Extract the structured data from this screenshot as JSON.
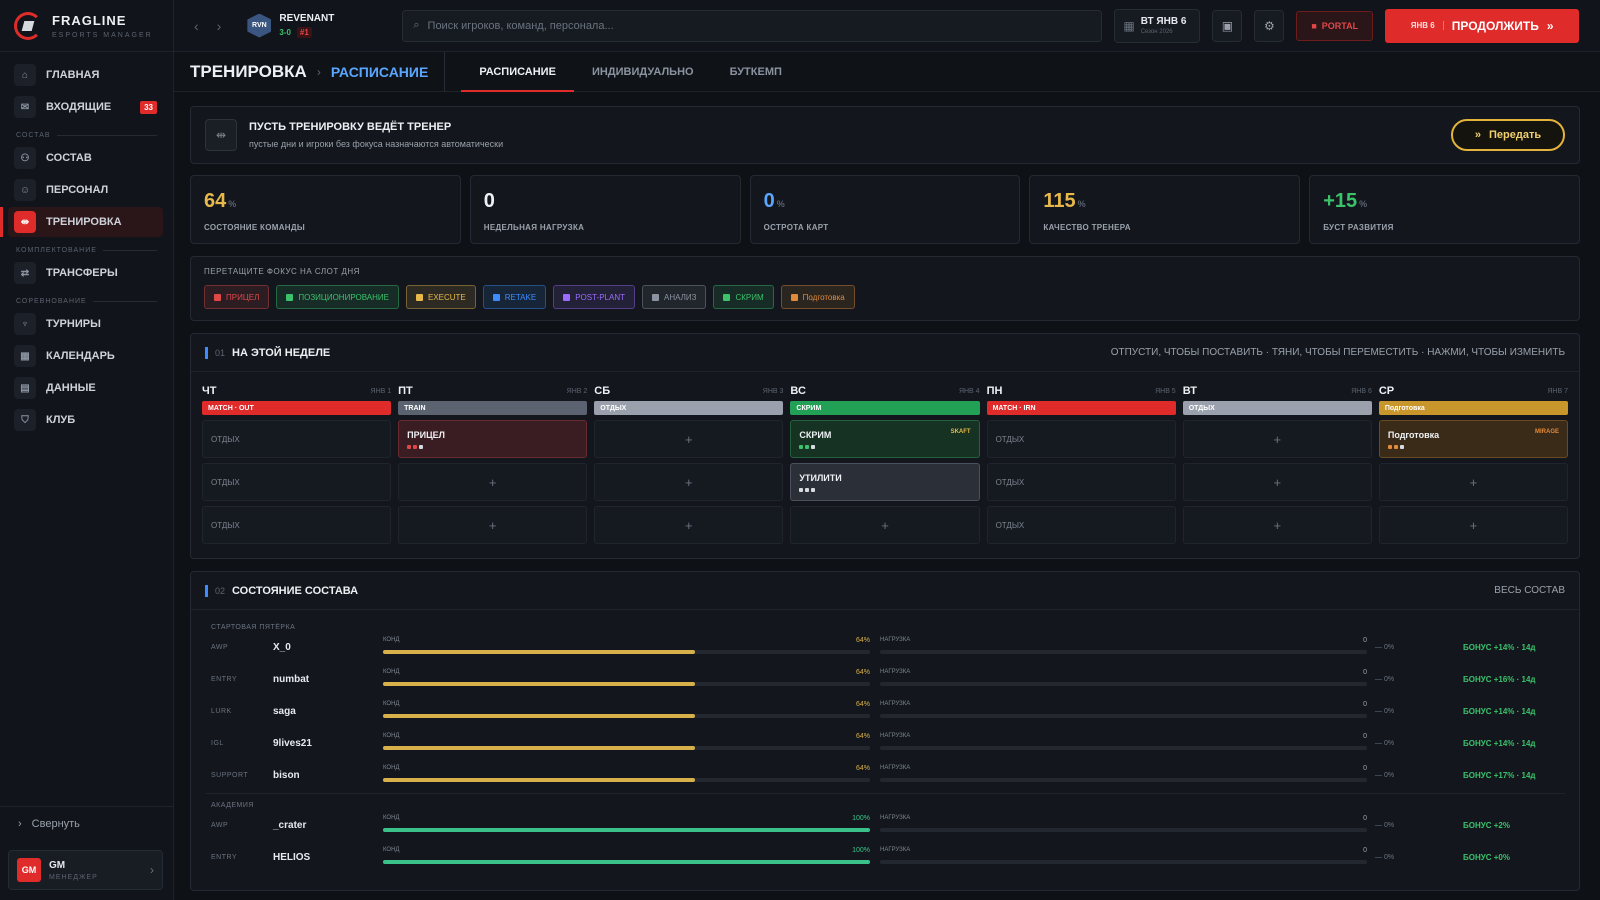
{
  "brand": {
    "name": "FRAGLINE",
    "subtitle": "ESPORTS MANAGER"
  },
  "sidebar": {
    "items": [
      {
        "label": "ГЛАВНАЯ",
        "icon": "home-icon"
      },
      {
        "label": "ВХОДЯЩИЕ",
        "icon": "mail-icon",
        "badge": "33"
      },
      {
        "label": "СОСТАВ",
        "icon": "users-icon"
      },
      {
        "label": "ПЕРСОНАЛ",
        "icon": "person-icon"
      },
      {
        "label": "ТРЕНИРОВКА",
        "icon": "dumbbell-icon"
      },
      {
        "label": "ТРАНСФЕРЫ",
        "icon": "transfer-icon"
      },
      {
        "label": "ТУРНИРЫ",
        "icon": "trophy-icon"
      },
      {
        "label": "КАЛЕНДАРЬ",
        "icon": "calendar-icon"
      },
      {
        "label": "ДАННЫЕ",
        "icon": "data-icon"
      },
      {
        "label": "КЛУБ",
        "icon": "shield-icon"
      }
    ],
    "sections": [
      "СОСТАВ",
      "КОМПЛЕКТОВАНИЕ",
      "СОРЕВНОВАНИЕ"
    ],
    "collapse_label": "Свернуть",
    "user": {
      "initials": "GM",
      "name": "GM",
      "role": "МЕНЕДЖЕР"
    }
  },
  "topbar": {
    "team": {
      "abbr": "RVN",
      "name": "REVENANT",
      "record": "3-0",
      "rank": "#1"
    },
    "search_placeholder": "Поиск игроков, команд, персонала...",
    "date": {
      "main": "ВТ ЯНВ 6",
      "sub": "Сезон 2026"
    },
    "portal_label": "PORTAL",
    "continue": {
      "date": "ЯНВ 6",
      "label": "ПРОДОЛЖИТЬ"
    }
  },
  "page": {
    "title": "ТРЕНИРОВКА",
    "current": "РАСПИСАНИЕ",
    "tabs": [
      "РАСПИСАНИЕ",
      "ИНДИВИДУАЛЬНО",
      "БУТКЕМП"
    ]
  },
  "coach": {
    "title": "ПУСТЬ ТРЕНИРОВКУ ВЕДЁТ ТРЕНЕР",
    "subtitle": "пустые дни и игроки без фокуса назначаются автоматически",
    "button": "Передать"
  },
  "stats": [
    {
      "value": "64",
      "unit": "%",
      "label": "СОСТОЯНИЕ КОМАНДЫ",
      "color": "#e8b84a"
    },
    {
      "value": "0",
      "unit": "",
      "label": "НЕДЕЛЬНАЯ НАГРУЗКА",
      "color": "#eef1f4"
    },
    {
      "value": "0",
      "unit": "%",
      "label": "ОСТРОТА КАРТ",
      "color": "#5aa6ff"
    },
    {
      "value": "115",
      "unit": "%",
      "label": "КАЧЕСТВО ТРЕНЕРА",
      "color": "#e8b84a"
    },
    {
      "value": "+15",
      "unit": "%",
      "label": "БУСТ РАЗВИТИЯ",
      "color": "#3bc26b"
    }
  ],
  "focus": {
    "label": "ПЕРЕТАЩИТЕ ФОКУС НА СЛОТ ДНЯ",
    "chips": [
      {
        "label": "ПРИЦЕЛ",
        "color": "#e04848"
      },
      {
        "label": "ПОЗИЦИОНИРОВАНИЕ",
        "color": "#3bc26b"
      },
      {
        "label": "EXECUTE",
        "color": "#e8b84a"
      },
      {
        "label": "RETAKE",
        "color": "#3c8cff"
      },
      {
        "label": "POST-PLANT",
        "color": "#9b6bff"
      },
      {
        "label": "АНАЛИЗ",
        "color": "#8b93a0"
      },
      {
        "label": "СКРИМ",
        "color": "#3bc26b"
      },
      {
        "label": "Подготовка",
        "color": "#e08a3a"
      }
    ]
  },
  "week": {
    "num": "01",
    "title": "НА ЭТОЙ НЕДЕЛЕ",
    "hint": "ОТПУСТИ, ЧТОБЫ ПОСТАВИТЬ · ТЯНИ, ЧТОБЫ ПЕРЕМЕСТИТЬ · НАЖМИ, ЧТОБЫ ИЗМЕНИТЬ",
    "days": [
      {
        "name": "ЧТ",
        "date": "ЯНВ 1",
        "tag": "MATCH · OUT",
        "tag_color": "#e02b2b",
        "slots": [
          {
            "type": "rest",
            "label": "ОТДЫХ"
          },
          {
            "type": "rest",
            "label": "ОТДЫХ"
          },
          {
            "type": "rest",
            "label": "ОТДЫХ"
          }
        ]
      },
      {
        "name": "ПТ",
        "date": "ЯНВ 2",
        "tag": "TRAIN",
        "tag_color": "#5b6370",
        "slots": [
          {
            "type": "filled",
            "label": "ПРИЦЕЛ",
            "bg": "#3a1d22",
            "border": "#6a2a31",
            "dot": "#e04848"
          },
          {
            "type": "plus",
            "label": "+"
          },
          {
            "type": "plus",
            "label": "+"
          }
        ]
      },
      {
        "name": "СБ",
        "date": "ЯНВ 3",
        "tag": "ОТДЫХ",
        "tag_color": "#9aa1ac",
        "slots": [
          {
            "type": "plus",
            "label": "+"
          },
          {
            "type": "plus",
            "label": "+"
          },
          {
            "type": "plus",
            "label": "+"
          }
        ]
      },
      {
        "name": "ВС",
        "date": "ЯНВ 4",
        "tag": "СКРИМ",
        "tag_color": "#22a055",
        "slots": [
          {
            "type": "filled",
            "label": "СКРИМ",
            "tag": "SKAFT",
            "tag_color": "#e8b84a",
            "bg": "#163223",
            "border": "#23603b",
            "dot": "#3bc26b"
          },
          {
            "type": "filled",
            "label": "УТИЛИТИ",
            "bg": "#2a2f38",
            "border": "#4a515c",
            "dot": "#d7dbe0"
          },
          {
            "type": "plus",
            "label": "+"
          }
        ]
      },
      {
        "name": "ПН",
        "date": "ЯНВ 5",
        "tag": "MATCH · IRN",
        "tag_color": "#e02b2b",
        "slots": [
          {
            "type": "rest",
            "label": "ОТДЫХ"
          },
          {
            "type": "rest",
            "label": "ОТДЫХ"
          },
          {
            "type": "rest",
            "label": "ОТДЫХ"
          }
        ]
      },
      {
        "name": "ВТ",
        "date": "ЯНВ 6",
        "tag": "ОТДЫХ",
        "tag_color": "#9aa1ac",
        "slots": [
          {
            "type": "plus",
            "label": "+"
          },
          {
            "type": "plus",
            "label": "+"
          },
          {
            "type": "plus",
            "label": "+"
          }
        ]
      },
      {
        "name": "СР",
        "date": "ЯНВ 7",
        "tag": "Подготовка",
        "tag_color": "#c8962a",
        "slots": [
          {
            "type": "filled",
            "label": "Подготовка",
            "tag": "MIRAGE",
            "tag_color": "#e08a3a",
            "bg": "#3a2a18",
            "border": "#6a4a22",
            "dot": "#e08a3a"
          },
          {
            "type": "plus",
            "label": "+"
          },
          {
            "type": "plus",
            "label": "+"
          }
        ]
      }
    ]
  },
  "roster": {
    "num": "02",
    "title": "СОСТОЯНИЕ СОСТАВА",
    "link": "ВЕСЬ СОСТАВ",
    "cond_label": "КОНД",
    "load_label": "НАГРУЗКА",
    "groups": [
      {
        "label": "СТАРТОВАЯ ПЯТЁРКА",
        "players": [
          {
            "role": "AWP",
            "name": "X_0",
            "cond": 64,
            "cond_text": "64%",
            "load": 0,
            "load_text": "0",
            "delta": "— 0%",
            "bonus": "БОНУС +14% · 14д",
            "color": "#d9b14a"
          },
          {
            "role": "ENTRY",
            "name": "numbat",
            "cond": 64,
            "cond_text": "64%",
            "load": 0,
            "load_text": "0",
            "delta": "— 0%",
            "bonus": "БОНУС +16% · 14д",
            "color": "#d9b14a"
          },
          {
            "role": "LURK",
            "name": "saga",
            "cond": 64,
            "cond_text": "64%",
            "load": 0,
            "load_text": "0",
            "delta": "— 0%",
            "bonus": "БОНУС +14% · 14д",
            "color": "#d9b14a"
          },
          {
            "role": "IGL",
            "name": "9lives21",
            "cond": 64,
            "cond_text": "64%",
            "load": 0,
            "load_text": "0",
            "delta": "— 0%",
            "bonus": "БОНУС +14% · 14д",
            "color": "#d9b14a"
          },
          {
            "role": "SUPPORT",
            "name": "bison",
            "cond": 64,
            "cond_text": "64%",
            "load": 0,
            "load_text": "0",
            "delta": "— 0%",
            "bonus": "БОНУС +17% · 14д",
            "color": "#d9b14a"
          }
        ]
      },
      {
        "label": "АКАДЕМИЯ",
        "players": [
          {
            "role": "AWP",
            "name": "_crater",
            "cond": 100,
            "cond_text": "100%",
            "load": 0,
            "load_text": "0",
            "delta": "— 0%",
            "bonus": "БОНУС +2%",
            "color": "#3bc28a"
          },
          {
            "role": "ENTRY",
            "name": "HELIOS",
            "cond": 100,
            "cond_text": "100%",
            "load": 0,
            "load_text": "0",
            "delta": "— 0%",
            "bonus": "БОНУС +0%",
            "color": "#3bc28a"
          }
        ]
      }
    ]
  }
}
